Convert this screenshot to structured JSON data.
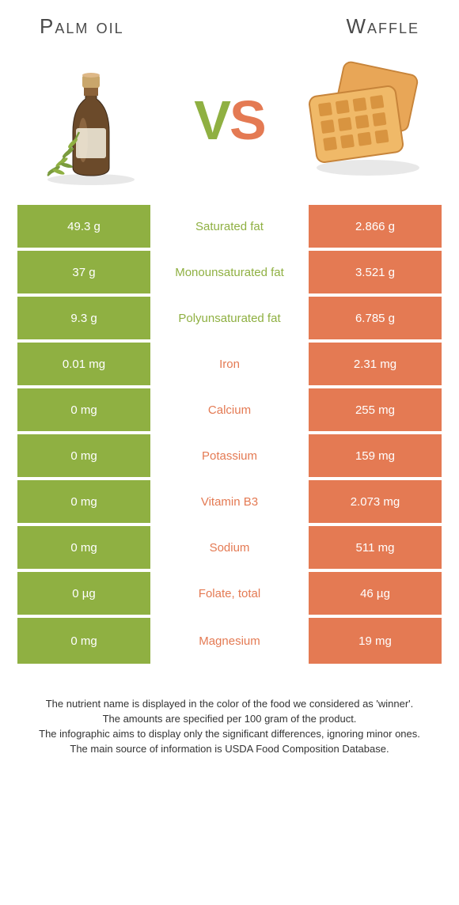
{
  "foods": {
    "left": {
      "name": "Palm oil"
    },
    "right": {
      "name": "Waffle"
    }
  },
  "vs": {
    "v": "V",
    "s": "S"
  },
  "colors": {
    "left": "#8fb042",
    "right": "#e47a53"
  },
  "rows": [
    {
      "left": "49.3 g",
      "label": "Saturated fat",
      "right": "2.866 g",
      "winner": "left"
    },
    {
      "left": "37 g",
      "label": "Monounsaturated fat",
      "right": "3.521 g",
      "winner": "left"
    },
    {
      "left": "9.3 g",
      "label": "Polyunsaturated fat",
      "right": "6.785 g",
      "winner": "left"
    },
    {
      "left": "0.01 mg",
      "label": "Iron",
      "right": "2.31 mg",
      "winner": "right"
    },
    {
      "left": "0 mg",
      "label": "Calcium",
      "right": "255 mg",
      "winner": "right"
    },
    {
      "left": "0 mg",
      "label": "Potassium",
      "right": "159 mg",
      "winner": "right"
    },
    {
      "left": "0 mg",
      "label": "Vitamin B3",
      "right": "2.073 mg",
      "winner": "right"
    },
    {
      "left": "0 mg",
      "label": "Sodium",
      "right": "511 mg",
      "winner": "right"
    },
    {
      "left": "0 µg",
      "label": "Folate, total",
      "right": "46 µg",
      "winner": "right"
    },
    {
      "left": "0 mg",
      "label": "Magnesium",
      "right": "19 mg",
      "winner": "right"
    }
  ],
  "footer": {
    "line1": "The nutrient name is displayed in the color of the food we considered as 'winner'.",
    "line2": "The amounts are specified per 100 gram of the product.",
    "line3": "The infographic aims to display only the significant differences, ignoring minor ones.",
    "line4": "The main source of information is USDA Food Composition Database."
  }
}
